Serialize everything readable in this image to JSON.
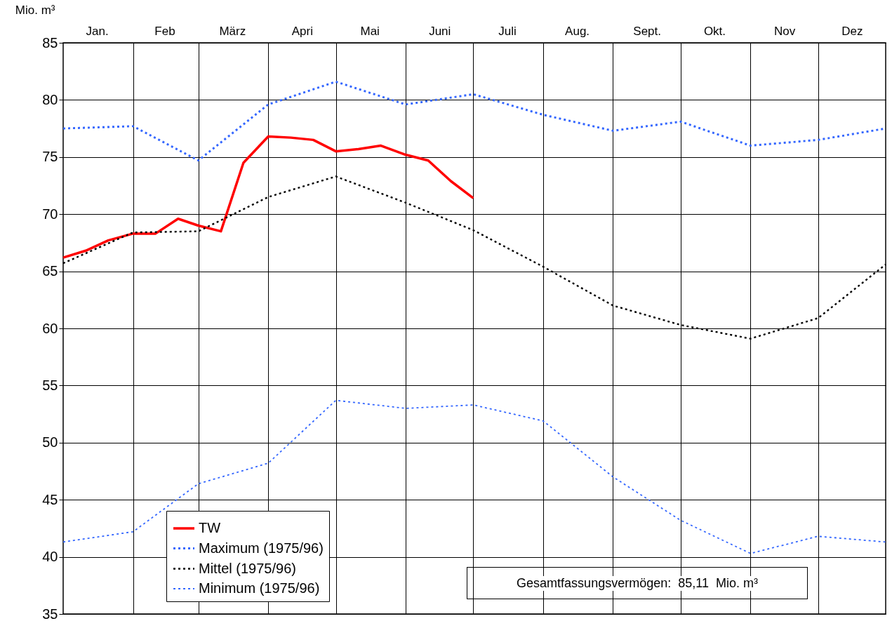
{
  "chart_data": {
    "type": "line",
    "ylabel": "Mio. m³",
    "xlim": [
      "--01-01",
      "--12-31"
    ],
    "ylim": [
      35,
      85
    ],
    "yticks": [
      35,
      40,
      45,
      50,
      55,
      60,
      65,
      70,
      75,
      80,
      85
    ],
    "xticks": [
      {
        "value": "--01-16",
        "label": "Jan."
      },
      {
        "value": "--02-01",
        "label": null
      },
      {
        "value": "--02-15",
        "label": "Feb"
      },
      {
        "value": "--03-01",
        "label": null
      },
      {
        "value": "--03-16",
        "label": "März"
      },
      {
        "value": "--04-01",
        "label": null
      },
      {
        "value": "--04-16",
        "label": "Apri"
      },
      {
        "value": "--05-01",
        "label": null
      },
      {
        "value": "--05-16",
        "label": "Mai"
      },
      {
        "value": "--06-01",
        "label": null
      },
      {
        "value": "--06-16",
        "label": "Juni"
      },
      {
        "value": "--07-01",
        "label": null
      },
      {
        "value": "--07-16",
        "label": "Juli"
      },
      {
        "value": "--08-01",
        "label": null
      },
      {
        "value": "--08-16",
        "label": "Aug."
      },
      {
        "value": "--09-01",
        "label": null
      },
      {
        "value": "--09-16",
        "label": "Sept."
      },
      {
        "value": "--10-01",
        "label": null
      },
      {
        "value": "--10-16",
        "label": "Okt."
      },
      {
        "value": "--11-01",
        "label": null
      },
      {
        "value": "--11-16",
        "label": "Nov"
      },
      {
        "value": "--12-01",
        "label": null
      },
      {
        "value": "--12-16",
        "label": "Dez"
      }
    ],
    "x": [
      "--01-01",
      "--02-01",
      "--03-01",
      "--04-01",
      "--05-01",
      "--06-01",
      "--07-01",
      "--08-01",
      "--09-01",
      "--10-01",
      "--11-01",
      "--12-01",
      "--12-31"
    ],
    "grid": true,
    "legend": "bottom left",
    "series": [
      {
        "name": "TW",
        "color": "#ff0000",
        "line_style": "solid",
        "x": [
          "--01-01",
          "--01-11",
          "--01-21",
          "--02-01",
          "--02-11",
          "--02-21",
          "--03-01",
          "--03-11",
          "--03-21",
          "--04-01",
          "--04-11",
          "--04-21",
          "--05-01",
          "--05-11",
          "--05-21",
          "--06-01",
          "--06-11",
          "--06-21",
          "--07-01"
        ],
        "values": [
          66.2,
          66.8,
          67.7,
          68.3,
          68.3,
          69.6,
          69.0,
          68.5,
          74.5,
          76.8,
          76.7,
          76.5,
          75.5,
          75.7,
          76.0,
          75.2,
          74.7,
          72.9,
          71.4
        ]
      },
      {
        "name": "Maximum (1975/96)",
        "color": "#3366ff",
        "line_style": "dotted",
        "values": [
          77.5,
          77.7,
          74.7,
          79.6,
          81.6,
          79.6,
          80.5,
          78.7,
          77.3,
          78.1,
          76.0,
          76.5,
          77.5
        ]
      },
      {
        "name": "Mittel (1975/96)",
        "color": "#000000",
        "line_style": "dotted",
        "values": [
          65.7,
          68.4,
          68.5,
          71.5,
          73.3,
          71.0,
          68.6,
          65.4,
          62.0,
          60.3,
          59.1,
          60.9,
          65.6
        ]
      },
      {
        "name": "Minimum (1975/96)",
        "color": "#3366ff",
        "line_style": "dotted",
        "values": [
          41.3,
          42.2,
          46.4,
          48.2,
          53.7,
          53.0,
          53.3,
          51.9,
          47.0,
          43.2,
          40.3,
          41.8,
          41.3
        ]
      }
    ],
    "annotations": [
      "Gesamtfassungsvermögen:  85,11  Mio. m³"
    ]
  }
}
